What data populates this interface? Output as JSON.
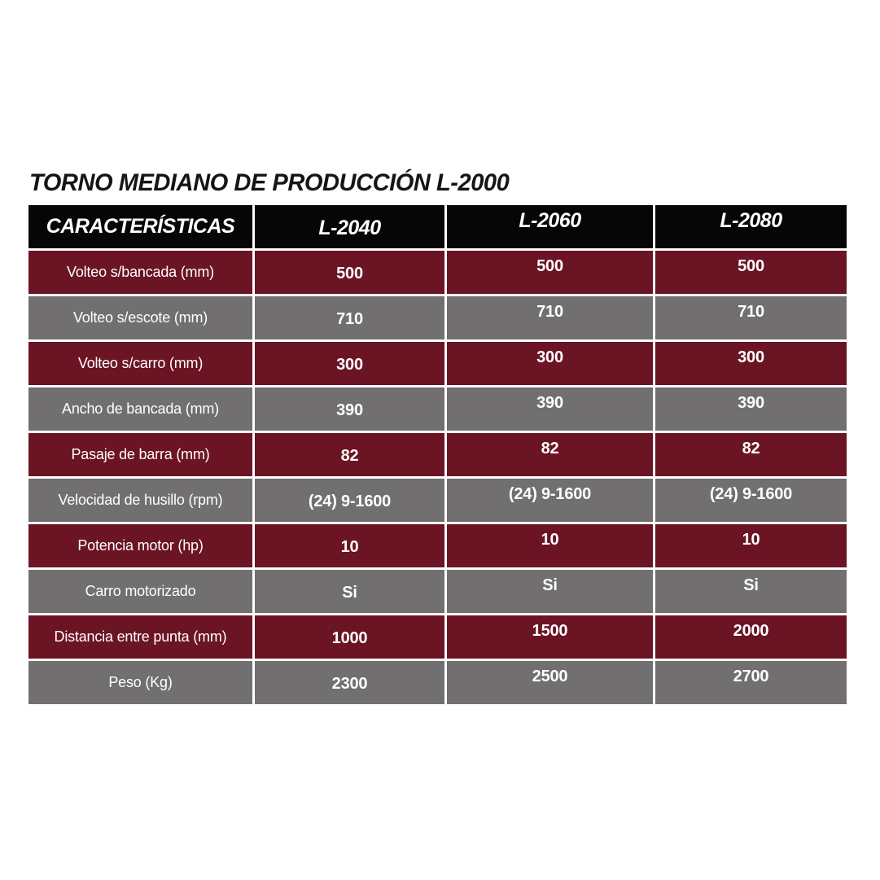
{
  "title": "TORNO MEDIANO DE PRODUCCIÓN L-2000",
  "colors": {
    "maroon": "#6B1424",
    "gray": "#716F70",
    "header-bg": "#060606",
    "text-light": "#FFFFFF",
    "title-text": "#151515",
    "page-bg": "#FFFFFF"
  },
  "table": {
    "columns": [
      "CARACTERÍSTICAS",
      "L-2040",
      "L-2060",
      "L-2080"
    ],
    "rows": [
      {
        "label": "Volteo s/bancada (mm)",
        "values": [
          "500",
          "500",
          "500"
        ]
      },
      {
        "label": "Volteo s/escote (mm)",
        "values": [
          "710",
          "710",
          "710"
        ]
      },
      {
        "label": "Volteo s/carro (mm)",
        "values": [
          "300",
          "300",
          "300"
        ]
      },
      {
        "label": "Ancho de bancada (mm)",
        "values": [
          "390",
          "390",
          "390"
        ]
      },
      {
        "label": "Pasaje de barra (mm)",
        "values": [
          "82",
          "82",
          "82"
        ]
      },
      {
        "label": "Velocidad de husillo (rpm)",
        "values": [
          "(24) 9-1600",
          "(24) 9-1600",
          "(24) 9-1600"
        ]
      },
      {
        "label": "Potencia motor (hp)",
        "values": [
          "10",
          "10",
          "10"
        ]
      },
      {
        "label": "Carro motorizado",
        "values": [
          "Si",
          "Si",
          "Si"
        ]
      },
      {
        "label": "Distancia entre punta (mm)",
        "values": [
          "1000",
          "1500",
          "2000"
        ]
      },
      {
        "label": "Peso (Kg)",
        "values": [
          "2300",
          "2500",
          "2700"
        ]
      }
    ]
  }
}
